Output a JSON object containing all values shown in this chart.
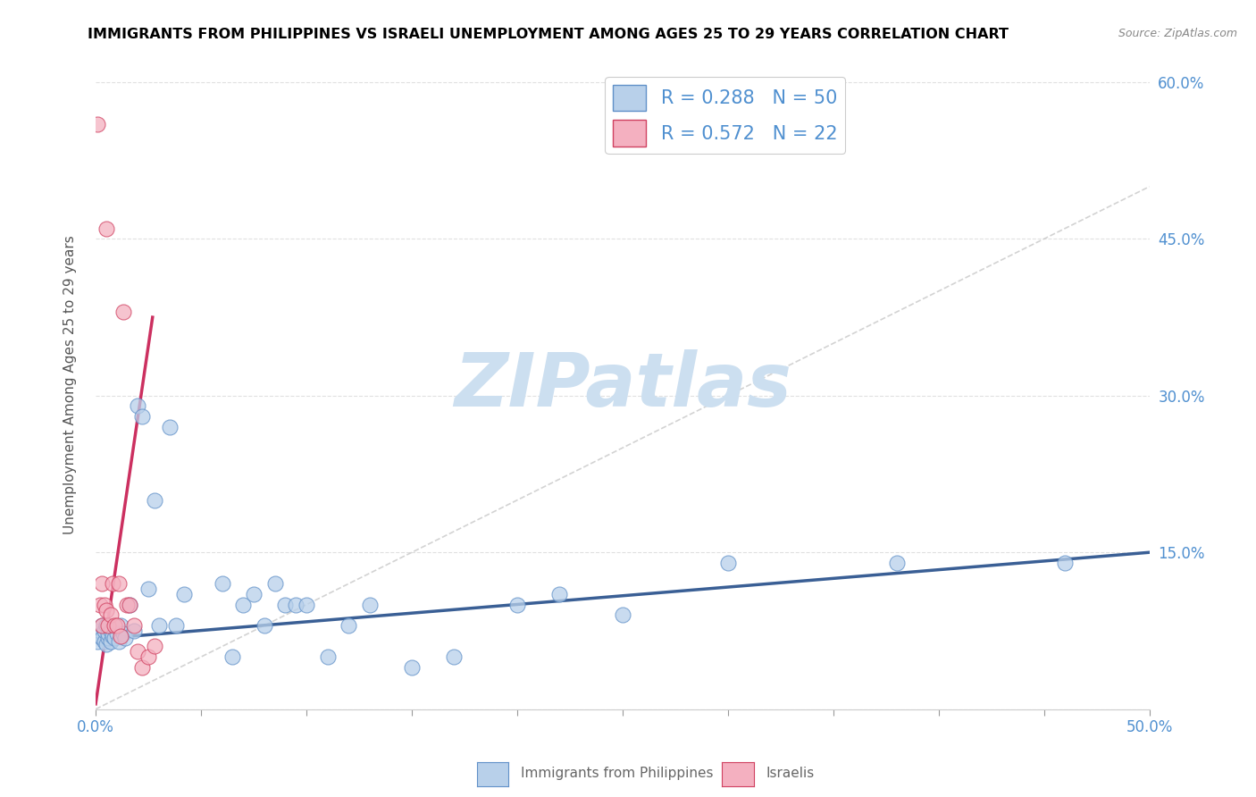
{
  "title": "IMMIGRANTS FROM PHILIPPINES VS ISRAELI UNEMPLOYMENT AMONG AGES 25 TO 29 YEARS CORRELATION CHART",
  "source": "Source: ZipAtlas.com",
  "ylabel": "Unemployment Among Ages 25 to 29 years",
  "xlim": [
    0.0,
    0.5
  ],
  "ylim": [
    0.0,
    0.62
  ],
  "xticks": [
    0.0,
    0.05,
    0.1,
    0.15,
    0.2,
    0.25,
    0.3,
    0.35,
    0.4,
    0.45,
    0.5
  ],
  "xtick_label_left": "0.0%",
  "xtick_label_right": "50.0%",
  "yticks_right": [
    0.0,
    0.15,
    0.3,
    0.45,
    0.6
  ],
  "yticklabels_right": [
    "",
    "15.0%",
    "30.0%",
    "45.0%",
    "60.0%"
  ],
  "legend_R1": "R = 0.288",
  "legend_N1": "N = 50",
  "legend_R2": "R = 0.572",
  "legend_N2": "N = 22",
  "legend_label1": "Immigrants from Philippines",
  "legend_label2": "Israelis",
  "blue_color": "#b8d0ea",
  "pink_color": "#f4b0c0",
  "blue_edge_color": "#6090c8",
  "pink_edge_color": "#d04060",
  "blue_line_color": "#3a5f95",
  "pink_line_color": "#cc3060",
  "dash_line_color": "#c8c8c8",
  "watermark": "ZIPatlas",
  "watermark_color": "#ccdff0",
  "blue_dots_x": [
    0.001,
    0.002,
    0.002,
    0.003,
    0.003,
    0.004,
    0.004,
    0.005,
    0.005,
    0.006,
    0.006,
    0.007,
    0.007,
    0.008,
    0.009,
    0.01,
    0.011,
    0.012,
    0.013,
    0.014,
    0.016,
    0.018,
    0.02,
    0.022,
    0.025,
    0.028,
    0.03,
    0.035,
    0.038,
    0.042,
    0.06,
    0.065,
    0.07,
    0.075,
    0.08,
    0.085,
    0.09,
    0.095,
    0.1,
    0.11,
    0.12,
    0.13,
    0.15,
    0.17,
    0.2,
    0.22,
    0.25,
    0.3,
    0.38,
    0.46
  ],
  "blue_dots_y": [
    0.065,
    0.07,
    0.075,
    0.068,
    0.08,
    0.065,
    0.075,
    0.062,
    0.08,
    0.068,
    0.072,
    0.065,
    0.075,
    0.07,
    0.068,
    0.072,
    0.065,
    0.08,
    0.072,
    0.068,
    0.1,
    0.075,
    0.29,
    0.28,
    0.115,
    0.2,
    0.08,
    0.27,
    0.08,
    0.11,
    0.12,
    0.05,
    0.1,
    0.11,
    0.08,
    0.12,
    0.1,
    0.1,
    0.1,
    0.05,
    0.08,
    0.1,
    0.04,
    0.05,
    0.1,
    0.11,
    0.09,
    0.14,
    0.14,
    0.14
  ],
  "pink_dots_x": [
    0.001,
    0.002,
    0.003,
    0.003,
    0.004,
    0.005,
    0.005,
    0.006,
    0.007,
    0.008,
    0.009,
    0.01,
    0.011,
    0.012,
    0.013,
    0.015,
    0.016,
    0.018,
    0.02,
    0.022,
    0.025,
    0.028
  ],
  "pink_dots_y": [
    0.56,
    0.1,
    0.12,
    0.08,
    0.1,
    0.095,
    0.46,
    0.08,
    0.09,
    0.12,
    0.08,
    0.08,
    0.12,
    0.07,
    0.38,
    0.1,
    0.1,
    0.08,
    0.055,
    0.04,
    0.05,
    0.06
  ],
  "blue_line_x": [
    0.0,
    0.5
  ],
  "blue_line_y": [
    0.067,
    0.15
  ],
  "pink_line_x": [
    0.0,
    0.027
  ],
  "pink_line_y": [
    0.005,
    0.375
  ],
  "dash_line_x": [
    0.0,
    0.5
  ],
  "dash_line_y": [
    0.0,
    0.5
  ],
  "background_color": "#ffffff",
  "grid_color": "#e0e0e0",
  "title_color": "#000000",
  "axis_label_color": "#555555",
  "tick_color": "#5090d0",
  "legend_text_color": "#5090d0"
}
